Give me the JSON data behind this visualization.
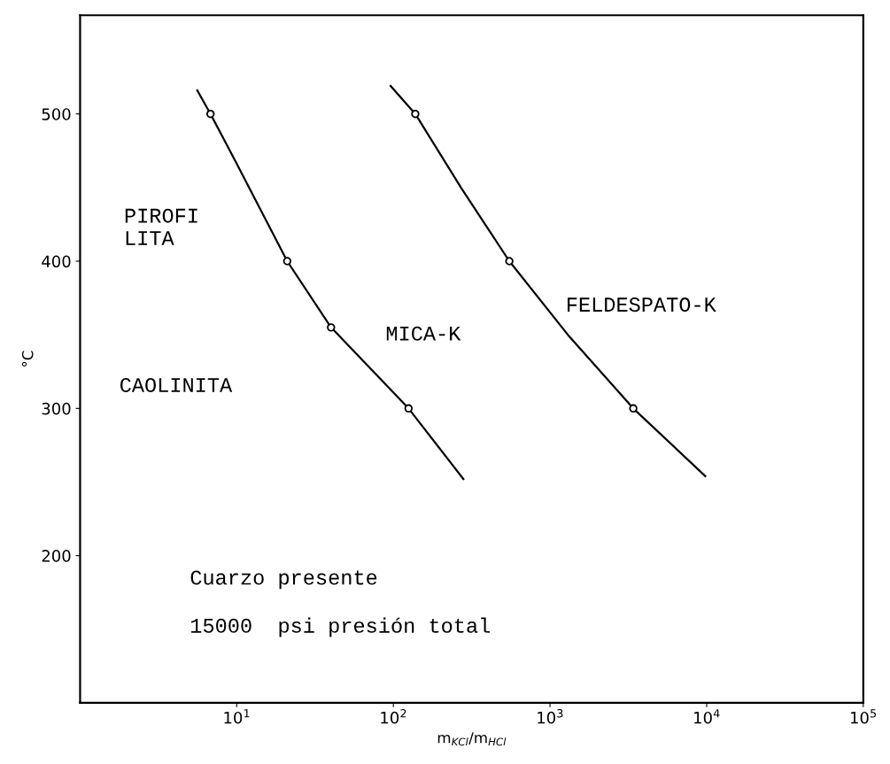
{
  "chart_data": {
    "type": "scatter",
    "xlabel": "m$_{KCl}$/m$_{HCl}$",
    "ylabel": "°C",
    "log": "x",
    "xlim": [
      1,
      100000
    ],
    "xticks": [
      {
        "value": 10,
        "label": "10$^{1}$"
      },
      {
        "value": 100,
        "label": "10$^{2}$"
      },
      {
        "value": 1000,
        "label": "10$^{3}$"
      },
      {
        "value": 10000,
        "label": "10$^{4}$"
      },
      {
        "value": 100000,
        "label": "10$^{5}$"
      }
    ],
    "ylim": [
      100,
      567
    ],
    "yticks": [
      200,
      300,
      400,
      500
    ],
    "grid": false,
    "series": [
      {
        "type": "line",
        "color": "#000000",
        "marker": "none",
        "x": [
          5.6,
          6.8,
          9.8,
          21,
          40,
          125,
          280
        ],
        "values": [
          516,
          500,
          468,
          400,
          355,
          300,
          252
        ]
      },
      {
        "type": "line",
        "color": "#000000",
        "marker": "none",
        "x": [
          96,
          138,
          270,
          550,
          1300,
          3400,
          9800
        ],
        "values": [
          519,
          500,
          450,
          400,
          350,
          300,
          254
        ]
      },
      {
        "color": "#000000",
        "marker": "circle",
        "x": [
          6.8,
          21,
          40,
          125,
          138,
          550,
          3400
        ],
        "values": [
          500,
          400,
          355,
          300,
          500,
          400,
          300
        ]
      }
    ],
    "annotations": [
      "PIROFI\nLITA",
      "CAOLINITA",
      "MICA-K",
      "FELDESPATO-K",
      "Cuarzo presente",
      "15000  psi presión total"
    ]
  }
}
